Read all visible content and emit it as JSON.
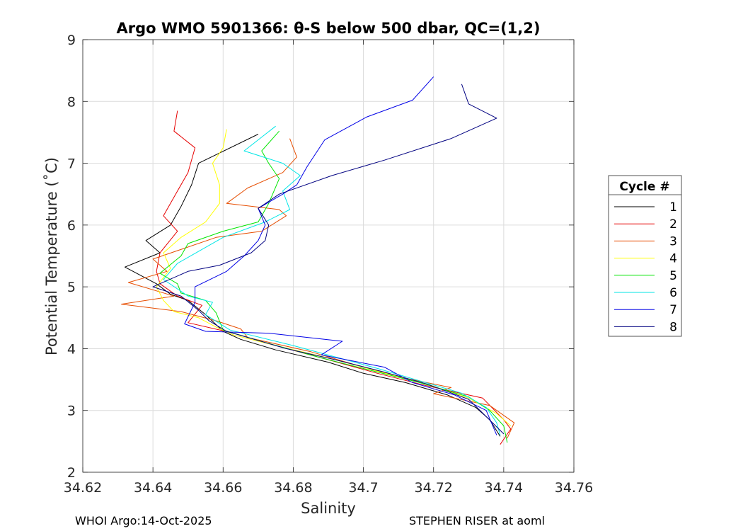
{
  "chart_data": {
    "type": "line",
    "title": "Argo WMO 5901366: θ-S below 500 dbar,  QC=(1,2)",
    "xlabel": "Salinity",
    "ylabel": "Potential Temperature (˚C)",
    "xlim": [
      34.62,
      34.76
    ],
    "ylim": [
      2,
      9
    ],
    "xticks": [
      34.62,
      34.64,
      34.66,
      34.68,
      34.7,
      34.72,
      34.74,
      34.76
    ],
    "xtick_labels": [
      "34.62",
      "34.64",
      "34.66",
      "34.68",
      "34.7",
      "34.72",
      "34.74",
      "34.76"
    ],
    "yticks": [
      2,
      3,
      4,
      5,
      6,
      7,
      8,
      9
    ],
    "ytick_labels": [
      "2",
      "3",
      "4",
      "5",
      "6",
      "7",
      "8",
      "9"
    ],
    "grid": true,
    "legend_title": "Cycle #",
    "legend_position": "right-outside",
    "series": [
      {
        "name": "1",
        "color": "#000000",
        "points": [
          [
            34.67,
            7.47
          ],
          [
            34.653,
            7.0
          ],
          [
            34.651,
            6.65
          ],
          [
            34.648,
            6.3
          ],
          [
            34.645,
            6.0
          ],
          [
            34.638,
            5.75
          ],
          [
            34.642,
            5.55
          ],
          [
            34.632,
            5.32
          ],
          [
            34.641,
            5.05
          ],
          [
            34.645,
            4.88
          ],
          [
            34.65,
            4.78
          ],
          [
            34.655,
            4.55
          ],
          [
            34.66,
            4.28
          ],
          [
            34.665,
            4.15
          ],
          [
            34.675,
            3.98
          ],
          [
            34.69,
            3.78
          ],
          [
            34.7,
            3.6
          ],
          [
            34.712,
            3.45
          ],
          [
            34.724,
            3.25
          ],
          [
            34.732,
            3.05
          ],
          [
            34.736,
            2.85
          ],
          [
            34.739,
            2.58
          ]
        ]
      },
      {
        "name": "2",
        "color": "#e60000",
        "points": [
          [
            34.647,
            7.85
          ],
          [
            34.646,
            7.52
          ],
          [
            34.652,
            7.25
          ],
          [
            34.65,
            6.85
          ],
          [
            34.647,
            6.55
          ],
          [
            34.643,
            6.15
          ],
          [
            34.647,
            5.9
          ],
          [
            34.642,
            5.55
          ],
          [
            34.641,
            5.25
          ],
          [
            34.642,
            5.05
          ],
          [
            34.647,
            4.85
          ],
          [
            34.654,
            4.7
          ],
          [
            34.65,
            4.42
          ],
          [
            34.663,
            4.25
          ],
          [
            34.675,
            4.05
          ],
          [
            34.69,
            3.82
          ],
          [
            34.704,
            3.6
          ],
          [
            34.718,
            3.4
          ],
          [
            34.734,
            3.2
          ],
          [
            34.74,
            2.85
          ],
          [
            34.742,
            2.7
          ],
          [
            34.739,
            2.45
          ]
        ]
      },
      {
        "name": "3",
        "color": "#e64d00",
        "points": [
          [
            34.679,
            7.4
          ],
          [
            34.681,
            7.1
          ],
          [
            34.677,
            6.85
          ],
          [
            34.667,
            6.6
          ],
          [
            34.661,
            6.35
          ],
          [
            34.676,
            6.25
          ],
          [
            34.678,
            6.15
          ],
          [
            34.671,
            5.9
          ],
          [
            34.658,
            5.8
          ],
          [
            34.64,
            5.45
          ],
          [
            34.644,
            5.25
          ],
          [
            34.633,
            5.07
          ],
          [
            34.646,
            4.85
          ],
          [
            34.631,
            4.72
          ],
          [
            34.648,
            4.6
          ],
          [
            34.658,
            4.45
          ],
          [
            34.665,
            4.32
          ],
          [
            34.667,
            4.18
          ],
          [
            34.685,
            3.95
          ],
          [
            34.7,
            3.7
          ],
          [
            34.712,
            3.52
          ],
          [
            34.725,
            3.37
          ],
          [
            34.72,
            3.27
          ],
          [
            34.736,
            3.08
          ],
          [
            34.743,
            2.8
          ],
          [
            34.741,
            2.55
          ]
        ]
      },
      {
        "name": "4",
        "color": "#ffff00",
        "points": [
          [
            34.661,
            7.55
          ],
          [
            34.66,
            7.25
          ],
          [
            34.657,
            7.0
          ],
          [
            34.659,
            6.65
          ],
          [
            34.659,
            6.35
          ],
          [
            34.655,
            6.05
          ],
          [
            34.648,
            5.8
          ],
          [
            34.643,
            5.55
          ],
          [
            34.645,
            5.3
          ],
          [
            34.641,
            5.0
          ],
          [
            34.643,
            4.78
          ],
          [
            34.646,
            4.6
          ],
          [
            34.653,
            4.5
          ],
          [
            34.658,
            4.35
          ],
          [
            34.663,
            4.22
          ],
          [
            34.675,
            4.05
          ],
          [
            34.69,
            3.85
          ],
          [
            34.705,
            3.62
          ],
          [
            34.718,
            3.43
          ],
          [
            34.73,
            3.2
          ],
          [
            34.738,
            2.95
          ],
          [
            34.742,
            2.75
          ]
        ]
      },
      {
        "name": "5",
        "color": "#00e600",
        "points": [
          [
            34.676,
            7.52
          ],
          [
            34.671,
            7.2
          ],
          [
            34.673,
            7.0
          ],
          [
            34.676,
            6.75
          ],
          [
            34.673,
            6.35
          ],
          [
            34.67,
            6.05
          ],
          [
            34.66,
            5.9
          ],
          [
            34.65,
            5.7
          ],
          [
            34.648,
            5.5
          ],
          [
            34.642,
            5.22
          ],
          [
            34.647,
            5.05
          ],
          [
            34.648,
            4.9
          ],
          [
            34.655,
            4.78
          ],
          [
            34.658,
            4.58
          ],
          [
            34.66,
            4.3
          ],
          [
            34.672,
            4.1
          ],
          [
            34.688,
            3.85
          ],
          [
            34.702,
            3.65
          ],
          [
            34.716,
            3.45
          ],
          [
            34.73,
            3.22
          ],
          [
            34.736,
            3.0
          ],
          [
            34.74,
            2.75
          ],
          [
            34.741,
            2.48
          ]
        ]
      },
      {
        "name": "6",
        "color": "#00e6e6",
        "points": [
          [
            34.675,
            7.6
          ],
          [
            34.666,
            7.2
          ],
          [
            34.677,
            7.0
          ],
          [
            34.682,
            6.8
          ],
          [
            34.677,
            6.55
          ],
          [
            34.679,
            6.25
          ],
          [
            34.672,
            6.05
          ],
          [
            34.66,
            5.8
          ],
          [
            34.647,
            5.38
          ],
          [
            34.643,
            5.12
          ],
          [
            34.65,
            4.85
          ],
          [
            34.657,
            4.75
          ],
          [
            34.655,
            4.55
          ],
          [
            34.662,
            4.3
          ],
          [
            34.68,
            4.05
          ],
          [
            34.693,
            3.85
          ],
          [
            34.704,
            3.68
          ],
          [
            34.716,
            3.48
          ],
          [
            34.728,
            3.28
          ],
          [
            34.735,
            3.05
          ],
          [
            34.738,
            2.8
          ],
          [
            34.739,
            2.6
          ]
        ]
      },
      {
        "name": "7",
        "color": "#0000e6",
        "points": [
          [
            34.72,
            8.4
          ],
          [
            34.714,
            8.02
          ],
          [
            34.701,
            7.75
          ],
          [
            34.689,
            7.38
          ],
          [
            34.684,
            6.95
          ],
          [
            34.681,
            6.65
          ],
          [
            34.677,
            6.5
          ],
          [
            34.67,
            6.27
          ],
          [
            34.672,
            6.0
          ],
          [
            34.67,
            5.75
          ],
          [
            34.666,
            5.5
          ],
          [
            34.661,
            5.25
          ],
          [
            34.652,
            5.0
          ],
          [
            34.652,
            4.75
          ],
          [
            34.649,
            4.4
          ],
          [
            34.655,
            4.28
          ],
          [
            34.673,
            4.25
          ],
          [
            34.694,
            4.12
          ],
          [
            34.688,
            3.9
          ],
          [
            34.706,
            3.7
          ],
          [
            34.714,
            3.45
          ],
          [
            34.726,
            3.25
          ],
          [
            34.735,
            3.0
          ],
          [
            34.738,
            2.6
          ]
        ]
      },
      {
        "name": "8",
        "color": "#000080",
        "points": [
          [
            34.728,
            8.28
          ],
          [
            34.73,
            7.96
          ],
          [
            34.738,
            7.73
          ],
          [
            34.725,
            7.4
          ],
          [
            34.706,
            7.05
          ],
          [
            34.691,
            6.8
          ],
          [
            34.676,
            6.5
          ],
          [
            34.67,
            6.27
          ],
          [
            34.673,
            6.0
          ],
          [
            34.672,
            5.75
          ],
          [
            34.668,
            5.55
          ],
          [
            34.659,
            5.35
          ],
          [
            34.65,
            5.25
          ],
          [
            34.64,
            5.0
          ],
          [
            34.648,
            4.85
          ],
          [
            34.653,
            4.62
          ],
          [
            34.656,
            4.45
          ],
          [
            34.661,
            4.28
          ],
          [
            34.678,
            4.0
          ],
          [
            34.692,
            3.82
          ],
          [
            34.706,
            3.62
          ],
          [
            34.718,
            3.43
          ],
          [
            34.73,
            3.18
          ],
          [
            34.735,
            2.9
          ],
          [
            34.74,
            2.62
          ]
        ]
      }
    ]
  },
  "footer": {
    "left": "WHOI Argo:14-Oct-2025",
    "right": "STEPHEN RISER at aoml"
  }
}
